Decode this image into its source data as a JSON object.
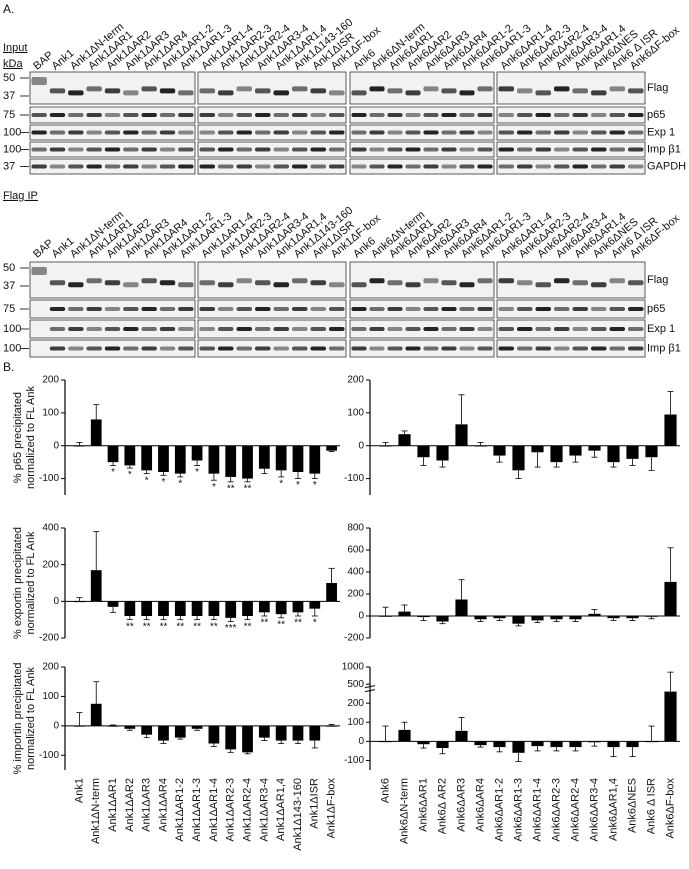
{
  "panel_a": {
    "label": "A.",
    "input_title": "Input",
    "kda": "kDa",
    "ip_title": "Flag IP",
    "lane_groups": [
      [
        "BAP",
        "Ank1",
        "Ank1ΔN-term",
        "Ank1ΔAR1",
        "Ank1ΔAR2",
        "Ank1ΔAR3",
        "Ank1ΔAR4",
        "Ank1ΔAR1-2",
        "Ank1ΔAR1-3"
      ],
      [
        "Ank1ΔAR1-4",
        "Ank1ΔAR2-3",
        "Ank1ΔAR2-4",
        "Ank1ΔAR3-4",
        "Ank1ΔAR1,4",
        "Ank1Δ143-160",
        "Ank1ΔISR",
        "Ank1ΔF-box"
      ],
      [
        "Ank6",
        "Ank6ΔN-term",
        "Ank6ΔAR1",
        "Ank6ΔAR2",
        "Ank6ΔAR3",
        "Ank6ΔAR4",
        "Ank6ΔAR1-2",
        "Ank6ΔAR1-3"
      ],
      [
        "Ank6ΔAR1-4",
        "Ank6ΔAR2-3",
        "Ank6ΔAR2-4",
        "Ank6ΔAR3-4",
        "Ank6ΔAR1,4",
        "Ank6ΔNES",
        "Ank6 Δ ISR",
        "Ank6ΔF-box"
      ]
    ],
    "input_blots": [
      {
        "markers": [
          50,
          37
        ],
        "label": "Flag"
      },
      {
        "markers": [
          75
        ],
        "label": "p65"
      },
      {
        "markers": [
          100
        ],
        "label": "Exp 1"
      },
      {
        "markers": [
          100
        ],
        "label": "Imp β1"
      },
      {
        "markers": [
          37
        ],
        "label": "GAPDH"
      }
    ],
    "ip_blots": [
      {
        "markers": [
          50,
          37
        ],
        "label": "Flag"
      },
      {
        "markers": [
          75
        ],
        "label": "p65"
      },
      {
        "markers": [
          100
        ],
        "label": "Exp 1"
      },
      {
        "markers": [
          100
        ],
        "label": "Imp β1"
      }
    ]
  },
  "panel_b": {
    "label": "B."
  },
  "chart_data": [
    {
      "type": "bar",
      "color": "#000000",
      "ylabel": [
        "% p65 precipitated",
        "normalized to FL Ank"
      ],
      "ylim": [
        -150,
        200
      ],
      "yticks": [
        200,
        100,
        0,
        -100
      ],
      "values": [
        0,
        80,
        -50,
        -60,
        -75,
        -80,
        -85,
        -45,
        -85,
        -95,
        -100,
        -70,
        -75,
        -80,
        -85,
        -15
      ],
      "errors": [
        10,
        45,
        10,
        8,
        10,
        10,
        10,
        15,
        20,
        15,
        10,
        15,
        20,
        20,
        15,
        3
      ],
      "significance": [
        null,
        null,
        "*",
        "*",
        "*",
        "*",
        "*",
        "*",
        "*",
        "**",
        "**",
        null,
        "*",
        "*",
        "*",
        null
      ]
    },
    {
      "type": "bar",
      "color": "#000000",
      "ylim": [
        -150,
        200
      ],
      "yticks": [
        200,
        100,
        0,
        -100
      ],
      "values": [
        0,
        35,
        -35,
        -45,
        65,
        0,
        -30,
        -75,
        -20,
        -50,
        -30,
        -15,
        -50,
        -40,
        -35,
        95
      ],
      "errors": [
        10,
        10,
        25,
        20,
        90,
        10,
        20,
        25,
        45,
        15,
        20,
        20,
        15,
        20,
        40,
        70
      ]
    },
    {
      "type": "bar",
      "color": "#000000",
      "ylabel": [
        "% exportin precipitated",
        "normalized to FL Ank"
      ],
      "ylim": [
        -200,
        400
      ],
      "yticks": [
        400,
        200,
        0,
        -200
      ],
      "values": [
        0,
        170,
        -30,
        -80,
        -80,
        -80,
        -80,
        -80,
        -80,
        -90,
        -80,
        -60,
        -70,
        -60,
        -40,
        100
      ],
      "errors": [
        20,
        210,
        30,
        20,
        20,
        20,
        20,
        20,
        20,
        20,
        20,
        20,
        20,
        20,
        40,
        80
      ],
      "significance": [
        null,
        null,
        null,
        "**",
        "**",
        "**",
        "**",
        "**",
        "**",
        "***",
        "**",
        "**",
        "**",
        "**",
        "*",
        null
      ]
    },
    {
      "type": "bar",
      "color": "#000000",
      "ylim": [
        -200,
        800
      ],
      "yticks": [
        800,
        600,
        400,
        200,
        0,
        -200
      ],
      "values": [
        0,
        40,
        -10,
        -50,
        150,
        -30,
        -20,
        -70,
        -40,
        -30,
        -30,
        20,
        -20,
        -20,
        -5,
        310
      ],
      "errors": [
        80,
        60,
        30,
        20,
        180,
        20,
        20,
        20,
        20,
        20,
        20,
        40,
        20,
        20,
        20,
        310
      ]
    },
    {
      "type": "bar",
      "color": "#000000",
      "ylabel": [
        "% importin precipitated",
        "normalized to FL Ank"
      ],
      "ylim": [
        -150,
        200
      ],
      "yticks": [
        200,
        100,
        0,
        -100
      ],
      "categories": [
        "Ank1",
        "Ank1ΔN-term",
        "Ank1ΔAR1",
        "Ank1ΔAR2",
        "Ank1ΔAR3",
        "Ank1ΔAR4",
        "Ank1ΔAR1-2",
        "Ank1ΔAR1-3",
        "Ank1ΔAR1-4",
        "Ank1ΔAR2-3",
        "Ank1ΔAR2-4",
        "Ank1ΔAR3-4",
        "Ank1ΔAR1,4",
        "Ank1Δ143-160",
        "Ank1ΔISR",
        "Ank1ΔF-box"
      ],
      "values": [
        0,
        75,
        0,
        -10,
        -30,
        -50,
        -40,
        -10,
        -60,
        -80,
        -90,
        -40,
        -50,
        -50,
        -50,
        0
      ],
      "errors": [
        45,
        75,
        3,
        5,
        10,
        10,
        5,
        5,
        10,
        10,
        5,
        10,
        10,
        10,
        25,
        5
      ]
    },
    {
      "type": "bar",
      "color": "#000000",
      "ylim": [
        -150,
        1000
      ],
      "ybreak": [
        250,
        400
      ],
      "yticks": [
        1000,
        500,
        200,
        100,
        0,
        -100
      ],
      "categories": [
        "Ank6",
        "Ank6ΔN-term",
        "Ank6ΔAR1",
        "Ank6Δ AR2",
        "Ank6ΔAR3",
        "Ank6ΔAR4",
        "Ank6ΔAR1-2",
        "Ank6ΔAR1-3",
        "Ank6ΔAR1-4",
        "Ank6ΔAR2-3",
        "Ank6ΔAR2-4",
        "Ank6ΔAR3-4",
        "Ank6ΔAR1,4",
        "Ank6ΔNES",
        "Ank6 Δ ISR",
        "Ank6ΔF-box"
      ],
      "values": [
        0,
        60,
        -15,
        -35,
        55,
        -20,
        -30,
        -60,
        -25,
        -30,
        -30,
        -5,
        -30,
        -30,
        0,
        300
      ],
      "errors": [
        80,
        40,
        20,
        30,
        70,
        10,
        25,
        45,
        25,
        20,
        20,
        20,
        50,
        50,
        80,
        550
      ]
    }
  ]
}
